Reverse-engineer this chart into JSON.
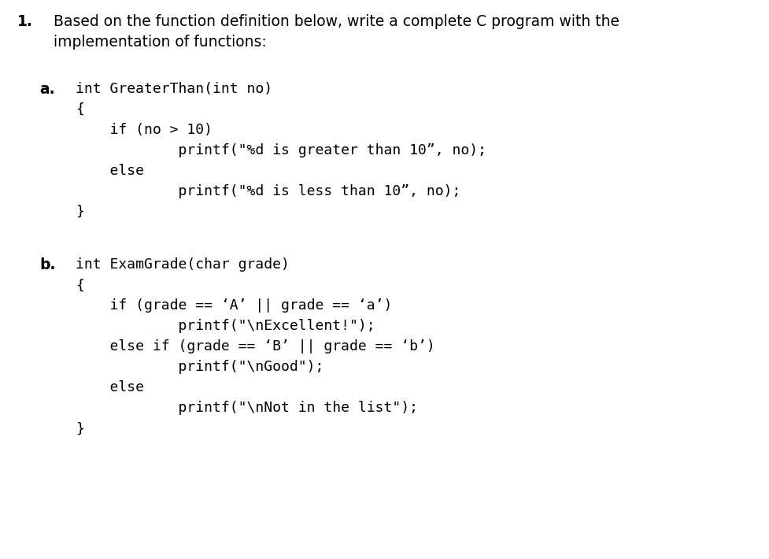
{
  "bg_color": "#ffffff",
  "text_color": "#000000",
  "question_number": "1.",
  "question_text_line1": "Based on the function definition below, write a complete C program with the",
  "question_text_line2": "implementation of functions:",
  "part_a_label": "a.",
  "part_b_label": "b.",
  "part_a_code": [
    "int GreaterThan(int no)",
    "{",
    "    if (no > 10)",
    "            printf(\"%d is greater than 10”, no);",
    "    else",
    "            printf(\"%d is less than 10”, no);",
    "}"
  ],
  "part_b_code": [
    "int ExamGrade(char grade)",
    "{",
    "    if (grade == ‘A’ || grade == ‘a’)",
    "            printf(\"\\nExcellent!\");",
    "    else if (grade == ‘B’ || grade == ‘b’)",
    "            printf(\"\\nGood\");",
    "    else",
    "            printf(\"\\nNot in the list\");",
    "}"
  ],
  "mono_fontsize": 13.0,
  "label_fontsize": 13.5,
  "question_fontsize": 13.5
}
